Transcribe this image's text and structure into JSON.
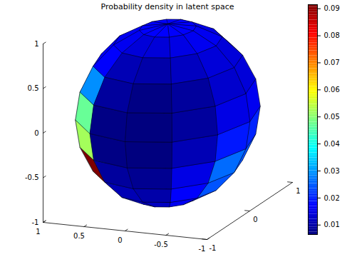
{
  "chart_data": {
    "type": "surface",
    "title": "Probability density in latent space",
    "xlim": [
      -1,
      1
    ],
    "xticks": [
      -1,
      -0.5,
      0,
      0.5,
      1
    ],
    "ylim": [
      -1,
      1
    ],
    "yticks": [
      -1,
      0,
      1
    ],
    "zlim": [
      -1,
      1
    ],
    "zticks": [
      -1,
      -0.5,
      0,
      0.5,
      1
    ],
    "values": [
      [
        0.015,
        0.014,
        0.013,
        0.013,
        0.015,
        0.015,
        0.015,
        0.014,
        0.014,
        0.014,
        0.015,
        0.015
      ],
      [
        0.019,
        0.016,
        0.012,
        0.013,
        0.024,
        0.02,
        0.016,
        0.015,
        0.015,
        0.016,
        0.017,
        0.019
      ],
      [
        0.024,
        0.017,
        0.01,
        0.011,
        0.062,
        0.03,
        0.018,
        0.016,
        0.016,
        0.017,
        0.019,
        0.022
      ],
      [
        0.026,
        0.015,
        0.008,
        0.009,
        0.0915,
        0.038,
        0.02,
        0.017,
        0.016,
        0.018,
        0.02,
        0.024
      ],
      [
        0.019,
        0.011,
        0.0065,
        0.007,
        0.052,
        0.031,
        0.019,
        0.017,
        0.016,
        0.017,
        0.018,
        0.02
      ],
      [
        0.015,
        0.009,
        0.0065,
        0.007,
        0.047,
        0.027,
        0.018,
        0.016,
        0.015,
        0.016,
        0.016,
        0.016
      ],
      [
        0.013,
        0.009,
        0.007,
        0.009,
        0.029,
        0.02,
        0.016,
        0.015,
        0.015,
        0.015,
        0.014,
        0.014
      ],
      [
        0.014,
        0.012,
        0.01,
        0.011,
        0.017,
        0.016,
        0.015,
        0.014,
        0.014,
        0.014,
        0.014,
        0.014
      ],
      [
        0.016,
        0.015,
        0.014,
        0.014,
        0.016,
        0.016,
        0.015,
        0.015,
        0.015,
        0.015,
        0.015,
        0.016
      ],
      [
        0.017,
        0.017,
        0.017,
        0.017,
        0.017,
        0.017,
        0.017,
        0.017,
        0.017,
        0.017,
        0.017,
        0.017
      ]
    ],
    "colorbar": {
      "range": [
        0.0065,
        0.0915
      ],
      "ticks": [
        0.01,
        0.02,
        0.03,
        0.04,
        0.05,
        0.06,
        0.07,
        0.08,
        0.09
      ]
    }
  }
}
